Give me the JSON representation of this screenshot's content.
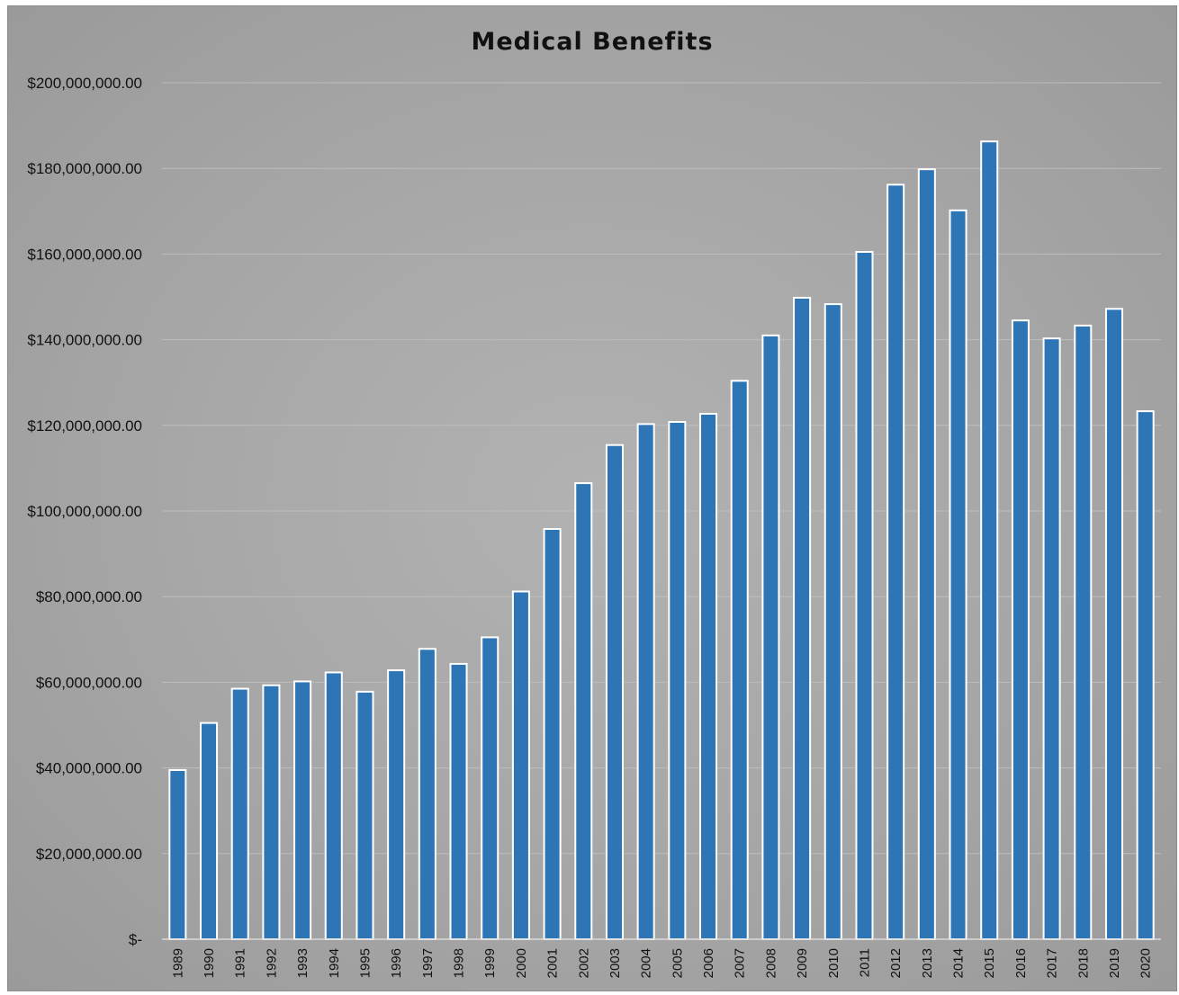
{
  "chart_data": {
    "type": "bar",
    "title": "Medical Benefits",
    "xlabel": "",
    "ylabel": "",
    "ylim": [
      0,
      200000000
    ],
    "yticks": [
      0,
      20000000,
      40000000,
      60000000,
      80000000,
      100000000,
      120000000,
      140000000,
      160000000,
      180000000,
      200000000
    ],
    "ytick_labels": [
      "$-",
      "$20,000,000.00",
      "$40,000,000.00",
      "$60,000,000.00",
      "$80,000,000.00",
      "$100,000,000.00",
      "$120,000,000.00",
      "$140,000,000.00",
      "$160,000,000.00",
      "$180,000,000.00",
      "$200,000,000.00"
    ],
    "categories": [
      "1989",
      "1990",
      "1991",
      "1992",
      "1993",
      "1994",
      "1995",
      "1996",
      "1997",
      "1998",
      "1999",
      "2000",
      "2001",
      "2002",
      "2003",
      "2004",
      "2005",
      "2006",
      "2007",
      "2008",
      "2009",
      "2010",
      "2011",
      "2012",
      "2013",
      "2014",
      "2015",
      "2016",
      "2017",
      "2018",
      "2019",
      "2020"
    ],
    "values": [
      39500000,
      50500000,
      58500000,
      59300000,
      60200000,
      62300000,
      57800000,
      62800000,
      67800000,
      64300000,
      70500000,
      81200000,
      95800000,
      106500000,
      115400000,
      120300000,
      120800000,
      122700000,
      130400000,
      141000000,
      149800000,
      148300000,
      160500000,
      176200000,
      179800000,
      170200000,
      186300000,
      144500000,
      140300000,
      143300000,
      147200000,
      123300000
    ],
    "grid": true,
    "legend": "none",
    "colors": {
      "bar": "#2e75b6",
      "bar_outline": "#ffffff",
      "background": "#a6a6a6"
    }
  }
}
